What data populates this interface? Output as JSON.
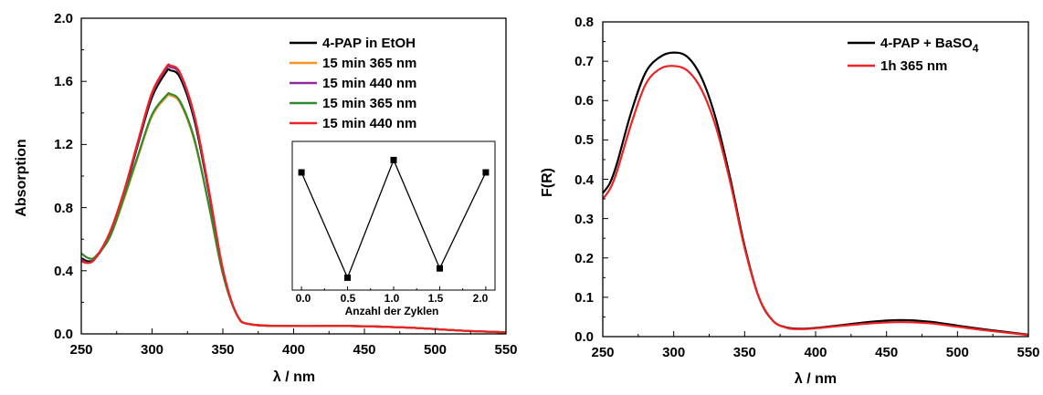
{
  "chart_data": [
    {
      "type": "line",
      "xlabel": "λ / nm",
      "ylabel": "Absorption",
      "xlim": [
        250,
        550
      ],
      "ylim": [
        0.0,
        2.0
      ],
      "xticks": [
        "250",
        "300",
        "350",
        "400",
        "450",
        "500",
        "550"
      ],
      "yticks": [
        "0.0",
        "0.4",
        "0.8",
        "1.2",
        "1.6",
        "2.0"
      ],
      "legend_position": "top-right",
      "series": [
        {
          "name": "4-PAP in EtOH",
          "color": "#000000",
          "x": [
            250,
            255,
            260,
            270,
            280,
            290,
            300,
            310,
            313,
            320,
            330,
            340,
            350,
            360,
            370,
            400,
            440,
            480,
            520,
            550
          ],
          "y": [
            0.48,
            0.46,
            0.48,
            0.62,
            0.88,
            1.2,
            1.5,
            1.66,
            1.67,
            1.62,
            1.35,
            0.9,
            0.4,
            0.12,
            0.06,
            0.05,
            0.05,
            0.04,
            0.02,
            0.01
          ]
        },
        {
          "name": "15 min 365 nm",
          "color": "#f7941d",
          "x": [
            250,
            255,
            260,
            270,
            280,
            290,
            300,
            310,
            313,
            320,
            330,
            340,
            350,
            360,
            370,
            400,
            440,
            480,
            520,
            550
          ],
          "y": [
            0.51,
            0.48,
            0.49,
            0.61,
            0.85,
            1.12,
            1.38,
            1.5,
            1.51,
            1.46,
            1.22,
            0.82,
            0.38,
            0.12,
            0.06,
            0.05,
            0.05,
            0.04,
            0.02,
            0.01
          ]
        },
        {
          "name": "15 min 440 nm",
          "color": "#8e2c9a",
          "x": [
            250,
            255,
            260,
            270,
            280,
            290,
            300,
            310,
            313,
            320,
            330,
            340,
            350,
            360,
            370,
            400,
            440,
            480,
            520,
            550
          ],
          "y": [
            0.47,
            0.45,
            0.48,
            0.63,
            0.89,
            1.21,
            1.52,
            1.68,
            1.69,
            1.64,
            1.37,
            0.91,
            0.41,
            0.12,
            0.06,
            0.05,
            0.05,
            0.04,
            0.02,
            0.01
          ]
        },
        {
          "name": "15 min 365 nm",
          "color": "#2e8b2e",
          "x": [
            250,
            255,
            260,
            270,
            280,
            290,
            300,
            310,
            313,
            320,
            330,
            340,
            350,
            360,
            370,
            400,
            440,
            480,
            520,
            550
          ],
          "y": [
            0.51,
            0.48,
            0.49,
            0.61,
            0.86,
            1.13,
            1.39,
            1.51,
            1.52,
            1.47,
            1.23,
            0.82,
            0.38,
            0.12,
            0.06,
            0.05,
            0.05,
            0.04,
            0.02,
            0.01
          ]
        },
        {
          "name": "15 min 440 nm",
          "color": "#ee2222",
          "x": [
            250,
            255,
            260,
            270,
            280,
            290,
            300,
            310,
            313,
            320,
            330,
            340,
            350,
            360,
            370,
            400,
            440,
            480,
            520,
            550
          ],
          "y": [
            0.46,
            0.45,
            0.48,
            0.64,
            0.9,
            1.22,
            1.53,
            1.69,
            1.7,
            1.65,
            1.38,
            0.92,
            0.41,
            0.12,
            0.06,
            0.05,
            0.05,
            0.04,
            0.02,
            0.01
          ]
        }
      ],
      "inset": {
        "type": "scatter-line",
        "xlabel": "Anzahl der Zyklen",
        "xticks": [
          "0.0",
          "0.5",
          "1.0",
          "1.5",
          "2.0"
        ],
        "xlim": [
          -0.1,
          2.1
        ],
        "ylim": [
          1.48,
          1.72
        ],
        "color": "#000000",
        "x": [
          0.0,
          0.5,
          1.0,
          1.5,
          2.0
        ],
        "y": [
          1.67,
          1.5,
          1.69,
          1.515,
          1.67
        ]
      }
    },
    {
      "type": "line",
      "xlabel": "λ / nm",
      "ylabel": "F(R)",
      "xlim": [
        250,
        550
      ],
      "ylim": [
        0.0,
        0.8
      ],
      "xticks": [
        "250",
        "300",
        "350",
        "400",
        "450",
        "500",
        "550"
      ],
      "yticks": [
        "0.0",
        "0.1",
        "0.2",
        "0.3",
        "0.4",
        "0.5",
        "0.6",
        "0.7",
        "0.8"
      ],
      "legend_position": "top-right",
      "series": [
        {
          "name": "4-PAP + BaSO4",
          "name_main": "4-PAP + BaSO",
          "name_sub": "4",
          "color": "#000000",
          "x": [
            250,
            255,
            260,
            270,
            280,
            290,
            300,
            310,
            320,
            330,
            340,
            350,
            360,
            370,
            380,
            390,
            400,
            420,
            440,
            460,
            480,
            500,
            520,
            550
          ],
          "y": [
            0.365,
            0.39,
            0.44,
            0.57,
            0.67,
            0.71,
            0.722,
            0.71,
            0.655,
            0.55,
            0.4,
            0.23,
            0.1,
            0.04,
            0.023,
            0.02,
            0.022,
            0.03,
            0.038,
            0.042,
            0.038,
            0.028,
            0.018,
            0.005
          ]
        },
        {
          "name": "1h 365 nm",
          "color": "#ee2222",
          "x": [
            250,
            255,
            260,
            270,
            280,
            290,
            300,
            310,
            320,
            330,
            340,
            350,
            360,
            370,
            380,
            390,
            400,
            420,
            440,
            460,
            480,
            500,
            520,
            550
          ],
          "y": [
            0.35,
            0.375,
            0.42,
            0.54,
            0.64,
            0.68,
            0.688,
            0.675,
            0.625,
            0.53,
            0.39,
            0.225,
            0.1,
            0.04,
            0.022,
            0.019,
            0.021,
            0.028,
            0.034,
            0.037,
            0.034,
            0.025,
            0.016,
            0.004
          ]
        }
      ]
    }
  ]
}
